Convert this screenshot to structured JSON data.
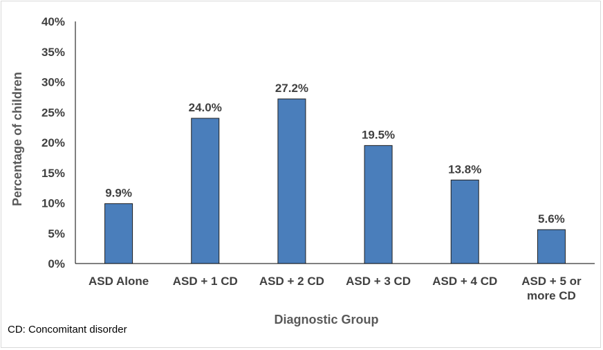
{
  "chart_data": {
    "type": "bar",
    "categories": [
      [
        "ASD Alone"
      ],
      [
        "ASD + 1 CD"
      ],
      [
        "ASD + 2 CD"
      ],
      [
        "ASD + 3 CD"
      ],
      [
        "ASD + 4 CD"
      ],
      [
        "ASD + 5 or",
        "more CD"
      ]
    ],
    "values": [
      9.9,
      24.0,
      27.2,
      19.5,
      13.8,
      5.6
    ],
    "value_labels": [
      "9.9%",
      "24.0%",
      "27.2%",
      "19.5%",
      "13.8%",
      "5.6%"
    ],
    "xlabel": "Diagnostic Group",
    "ylabel": "Percentage of children",
    "ylim": [
      0,
      40
    ],
    "yticks": [
      0,
      5,
      10,
      15,
      20,
      25,
      30,
      35,
      40
    ],
    "ytick_labels": [
      "0%",
      "5%",
      "10%",
      "15%",
      "20%",
      "25%",
      "30%",
      "35%",
      "40%"
    ],
    "grid": false,
    "colors": {
      "bar": "#4a7ebb",
      "bar_edge": "#1f1f1f",
      "text": "#404040",
      "axis_title": "#595959"
    }
  },
  "footnote": "CD: Concomitant disorder"
}
